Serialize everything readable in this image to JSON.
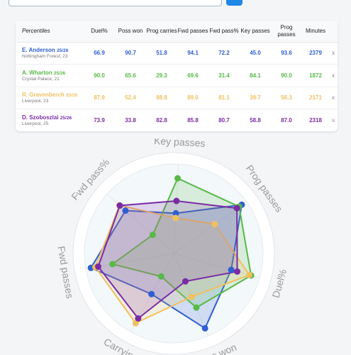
{
  "table": {
    "headers": [
      "Percentiles",
      "Duel%",
      "Poss won",
      "Prog carries",
      "Fwd passes",
      "Fwd pass%",
      "Key passes",
      "Prog passes",
      "Minutes",
      ""
    ],
    "remove_label": "x",
    "players": [
      {
        "name": "E. Anderson",
        "season": "25/26",
        "club": "Nottingham Forest, 23",
        "color": "#2f5fd0",
        "values": [
          "66.9",
          "90.7",
          "51.8",
          "94.1",
          "72.2",
          "45.0",
          "93.6",
          "2379"
        ]
      },
      {
        "name": "A. Wharton",
        "season": "25/26",
        "club": "Crystal Palace, 21",
        "color": "#58b948",
        "values": [
          "90.0",
          "65.6",
          "29.3",
          "69.6",
          "31.4",
          "84.1",
          "90.0",
          "1872"
        ]
      },
      {
        "name": "R. Gravenberch",
        "season": "25/26",
        "club": "Liverpool, 23",
        "color": "#f0c060",
        "values": [
          "87.9",
          "52.4",
          "88.8",
          "89.0",
          "81.1",
          "39.7",
          "56.3",
          "2171"
        ]
      },
      {
        "name": "D. Szoboszlai",
        "season": "25/26",
        "club": "Liverpool, 25",
        "color": "#7a2ca5",
        "values": [
          "73.9",
          "33.8",
          "82.8",
          "85.8",
          "80.7",
          "58.8",
          "87.0",
          "2318"
        ]
      }
    ]
  },
  "chart_data": {
    "type": "radar",
    "axes": [
      "Key passes",
      "Prog passes",
      "Duel%",
      "Poss won",
      "Carrying",
      "Fwd passes",
      "Fwd pass%"
    ],
    "range": [
      0,
      100
    ],
    "series": [
      {
        "name": "E. Anderson",
        "color": "#2f5fd0",
        "values": [
          45.0,
          93.6,
          66.9,
          90.7,
          51.8,
          94.1,
          72.2
        ]
      },
      {
        "name": "A. Wharton",
        "color": "#58b948",
        "values": [
          84.1,
          90.0,
          90.0,
          65.6,
          29.3,
          69.6,
          31.4
        ]
      },
      {
        "name": "R. Gravenberch",
        "color": "#f0c060",
        "values": [
          39.7,
          56.3,
          87.9,
          52.4,
          88.8,
          89.0,
          81.1
        ]
      },
      {
        "name": "D. Szoboszlai",
        "color": "#7a2ca5",
        "values": [
          58.8,
          87.0,
          73.9,
          33.8,
          82.8,
          85.8,
          80.7
        ]
      }
    ]
  }
}
